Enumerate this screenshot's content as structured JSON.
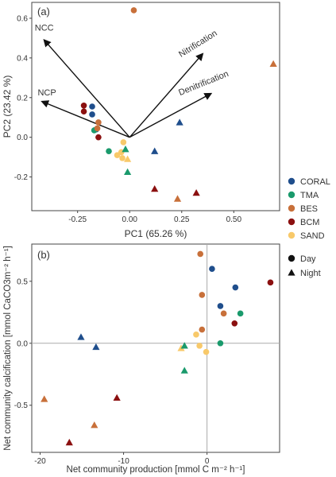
{
  "legend": {
    "sites": [
      {
        "name": "CORAL",
        "color": "#1f4e8c"
      },
      {
        "name": "TMA",
        "color": "#1a9a6c"
      },
      {
        "name": "BES",
        "color": "#c8703a"
      },
      {
        "name": "BCM",
        "color": "#8b1010"
      },
      {
        "name": "SAND",
        "color": "#f8c96a"
      }
    ],
    "time": [
      {
        "name": "Day",
        "shape": "circle"
      },
      {
        "name": "Night",
        "shape": "triangle"
      }
    ]
  },
  "chart_data": [
    {
      "type": "scatter",
      "panel_label": "(a)",
      "xlabel": "PC1 (65.26 %)",
      "ylabel": "PC2 (23.42 %)",
      "xlim": [
        -0.47,
        0.72
      ],
      "ylim": [
        -0.37,
        0.68
      ],
      "xticks": [
        -0.25,
        0.0,
        0.25,
        0.5
      ],
      "xtick_labels": [
        "-0.25",
        "0.00",
        "0.25",
        "0.50"
      ],
      "yticks": [
        -0.2,
        0.0,
        0.2,
        0.4,
        0.6
      ],
      "ytick_labels": [
        "-0.2",
        "0.0",
        "0.2",
        "0.4",
        "0.6"
      ],
      "grid": false,
      "arrows": [
        {
          "label": "NCC",
          "x": -0.41,
          "y": 0.49
        },
        {
          "label": "NCP",
          "x": -0.42,
          "y": 0.18
        },
        {
          "label": "Nitrification",
          "x": 0.35,
          "y": 0.42
        },
        {
          "label": "Denitrification",
          "x": 0.39,
          "y": 0.22
        }
      ],
      "points": [
        {
          "site": "BES",
          "time": "Day",
          "x": 0.02,
          "y": 0.64
        },
        {
          "site": "BES",
          "time": "Night",
          "x": 0.69,
          "y": 0.37
        },
        {
          "site": "CORAL",
          "time": "Day",
          "x": -0.18,
          "y": 0.155
        },
        {
          "site": "CORAL",
          "time": "Day",
          "x": -0.18,
          "y": 0.115
        },
        {
          "site": "BCM",
          "time": "Day",
          "x": -0.22,
          "y": 0.16
        },
        {
          "site": "BCM",
          "time": "Day",
          "x": -0.22,
          "y": 0.13
        },
        {
          "site": "BES",
          "time": "Day",
          "x": -0.15,
          "y": 0.075
        },
        {
          "site": "CORAL",
          "time": "Day",
          "x": -0.16,
          "y": 0.04
        },
        {
          "site": "TMA",
          "time": "Day",
          "x": -0.17,
          "y": 0.035
        },
        {
          "site": "BCM",
          "time": "Day",
          "x": -0.15,
          "y": 0.0
        },
        {
          "site": "BES",
          "time": "Day",
          "x": -0.155,
          "y": 0.045
        },
        {
          "site": "TMA",
          "time": "Day",
          "x": -0.1,
          "y": -0.07
        },
        {
          "site": "SAND",
          "time": "Day",
          "x": -0.03,
          "y": -0.025
        },
        {
          "site": "SAND",
          "time": "Day",
          "x": -0.04,
          "y": -0.075
        },
        {
          "site": "SAND",
          "time": "Day",
          "x": -0.06,
          "y": -0.09
        },
        {
          "site": "SAND",
          "time": "Day",
          "x": -0.035,
          "y": -0.105
        },
        {
          "site": "TMA",
          "time": "Night",
          "x": -0.02,
          "y": -0.06
        },
        {
          "site": "SAND",
          "time": "Night",
          "x": -0.01,
          "y": -0.11
        },
        {
          "site": "TMA",
          "time": "Night",
          "x": -0.01,
          "y": -0.175
        },
        {
          "site": "CORAL",
          "time": "Night",
          "x": 0.12,
          "y": -0.07
        },
        {
          "site": "CORAL",
          "time": "Night",
          "x": 0.24,
          "y": 0.075
        },
        {
          "site": "BCM",
          "time": "Night",
          "x": 0.12,
          "y": -0.26
        },
        {
          "site": "BES",
          "time": "Night",
          "x": 0.23,
          "y": -0.31
        },
        {
          "site": "BCM",
          "time": "Night",
          "x": 0.32,
          "y": -0.28
        }
      ]
    },
    {
      "type": "scatter",
      "panel_label": "(b)",
      "xlabel": "Net community production [mmol C m⁻² h⁻¹]",
      "ylabel": "Net community calcification [mmol CaCO3m⁻² h⁻¹]",
      "xlim": [
        -21,
        8.7
      ],
      "ylim": [
        -0.88,
        0.8
      ],
      "xticks": [
        -20,
        -10,
        0
      ],
      "xtick_labels": [
        "-20",
        "-10",
        "0"
      ],
      "yticks": [
        -0.5,
        0.0,
        0.5
      ],
      "ytick_labels": [
        "-0.5",
        "0.0",
        "0.5"
      ],
      "grid": false,
      "reference_lines": {
        "x": 0,
        "y": 0
      },
      "points": [
        {
          "site": "BES",
          "time": "Day",
          "x": -0.8,
          "y": 0.72
        },
        {
          "site": "CORAL",
          "time": "Day",
          "x": 0.6,
          "y": 0.6
        },
        {
          "site": "BCM",
          "time": "Day",
          "x": 7.6,
          "y": 0.49
        },
        {
          "site": "CORAL",
          "time": "Day",
          "x": 3.4,
          "y": 0.45
        },
        {
          "site": "BES",
          "time": "Day",
          "x": -0.6,
          "y": 0.39
        },
        {
          "site": "CORAL",
          "time": "Day",
          "x": 1.6,
          "y": 0.3
        },
        {
          "site": "BES",
          "time": "Day",
          "x": 2.0,
          "y": 0.24
        },
        {
          "site": "TMA",
          "time": "Day",
          "x": 4.0,
          "y": 0.24
        },
        {
          "site": "BCM",
          "time": "Day",
          "x": 3.3,
          "y": 0.16
        },
        {
          "site": "BES",
          "time": "Day",
          "x": -0.6,
          "y": 0.11
        },
        {
          "site": "SAND",
          "time": "Day",
          "x": -1.3,
          "y": 0.07
        },
        {
          "site": "TMA",
          "time": "Day",
          "x": 1.6,
          "y": 0.0
        },
        {
          "site": "SAND",
          "time": "Day",
          "x": -0.9,
          "y": -0.02
        },
        {
          "site": "SAND",
          "time": "Day",
          "x": -0.1,
          "y": -0.07
        },
        {
          "site": "SAND",
          "time": "Night",
          "x": -3.1,
          "y": -0.04
        },
        {
          "site": "TMA",
          "time": "Night",
          "x": -2.7,
          "y": -0.02
        },
        {
          "site": "TMA",
          "time": "Night",
          "x": -2.7,
          "y": -0.22
        },
        {
          "site": "CORAL",
          "time": "Night",
          "x": -15.1,
          "y": 0.05
        },
        {
          "site": "CORAL",
          "time": "Night",
          "x": -13.3,
          "y": -0.03
        },
        {
          "site": "BES",
          "time": "Night",
          "x": -19.5,
          "y": -0.45
        },
        {
          "site": "BCM",
          "time": "Night",
          "x": -10.8,
          "y": -0.44
        },
        {
          "site": "BES",
          "time": "Night",
          "x": -13.5,
          "y": -0.66
        },
        {
          "site": "BCM",
          "time": "Night",
          "x": -16.5,
          "y": -0.8
        }
      ]
    }
  ]
}
